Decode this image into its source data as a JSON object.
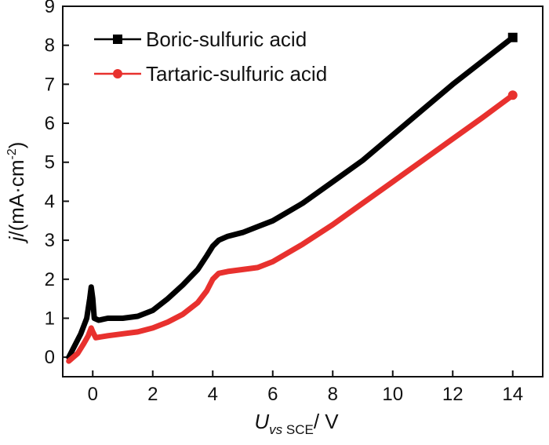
{
  "chart_data": {
    "type": "line",
    "xlim": [
      -1,
      15
    ],
    "ylim": [
      -0.5,
      9
    ],
    "x_ticks": [
      0,
      2,
      4,
      6,
      8,
      10,
      12,
      14
    ],
    "y_ticks": [
      0,
      1,
      2,
      3,
      4,
      5,
      6,
      7,
      8,
      9
    ],
    "xlabel": {
      "main": "U",
      "sub": "vs",
      "sub2": " SCE",
      "unit": "/ V"
    },
    "ylabel": {
      "main": "j",
      "unit": "/(mA·cm",
      "sup": "-2",
      "close": ")"
    },
    "grid": false,
    "legend_position": "top-left",
    "series": [
      {
        "name": "Boric-sulfuric acid",
        "color": "#000000",
        "marker": "square",
        "points": [
          [
            -0.8,
            0.0
          ],
          [
            -0.6,
            0.3
          ],
          [
            -0.4,
            0.6
          ],
          [
            -0.2,
            1.0
          ],
          [
            -0.1,
            1.5
          ],
          [
            -0.05,
            1.8
          ],
          [
            0.0,
            1.5
          ],
          [
            0.05,
            1.0
          ],
          [
            0.2,
            0.95
          ],
          [
            0.5,
            1.0
          ],
          [
            1.0,
            1.0
          ],
          [
            1.5,
            1.05
          ],
          [
            2.0,
            1.2
          ],
          [
            2.5,
            1.5
          ],
          [
            3.0,
            1.85
          ],
          [
            3.5,
            2.25
          ],
          [
            3.8,
            2.6
          ],
          [
            4.0,
            2.85
          ],
          [
            4.2,
            3.0
          ],
          [
            4.5,
            3.1
          ],
          [
            5.0,
            3.2
          ],
          [
            5.5,
            3.35
          ],
          [
            6.0,
            3.5
          ],
          [
            7.0,
            3.95
          ],
          [
            8.0,
            4.5
          ],
          [
            9.0,
            5.05
          ],
          [
            10.0,
            5.7
          ],
          [
            11.0,
            6.35
          ],
          [
            12.0,
            7.0
          ],
          [
            13.0,
            7.6
          ],
          [
            14.0,
            8.2
          ]
        ]
      },
      {
        "name": "Tartaric-sulfuric acid",
        "color": "#e8312e",
        "marker": "circle",
        "points": [
          [
            -0.8,
            -0.1
          ],
          [
            -0.5,
            0.1
          ],
          [
            -0.3,
            0.35
          ],
          [
            -0.15,
            0.55
          ],
          [
            -0.05,
            0.75
          ],
          [
            0.0,
            0.65
          ],
          [
            0.1,
            0.5
          ],
          [
            0.5,
            0.55
          ],
          [
            1.0,
            0.6
          ],
          [
            1.5,
            0.65
          ],
          [
            2.0,
            0.75
          ],
          [
            2.5,
            0.9
          ],
          [
            3.0,
            1.1
          ],
          [
            3.5,
            1.4
          ],
          [
            3.8,
            1.7
          ],
          [
            4.0,
            2.0
          ],
          [
            4.2,
            2.15
          ],
          [
            4.5,
            2.2
          ],
          [
            5.0,
            2.25
          ],
          [
            5.5,
            2.3
          ],
          [
            6.0,
            2.45
          ],
          [
            7.0,
            2.9
          ],
          [
            8.0,
            3.4
          ],
          [
            9.0,
            3.95
          ],
          [
            10.0,
            4.5
          ],
          [
            11.0,
            5.05
          ],
          [
            12.0,
            5.6
          ],
          [
            13.0,
            6.15
          ],
          [
            14.0,
            6.72
          ]
        ]
      }
    ]
  }
}
